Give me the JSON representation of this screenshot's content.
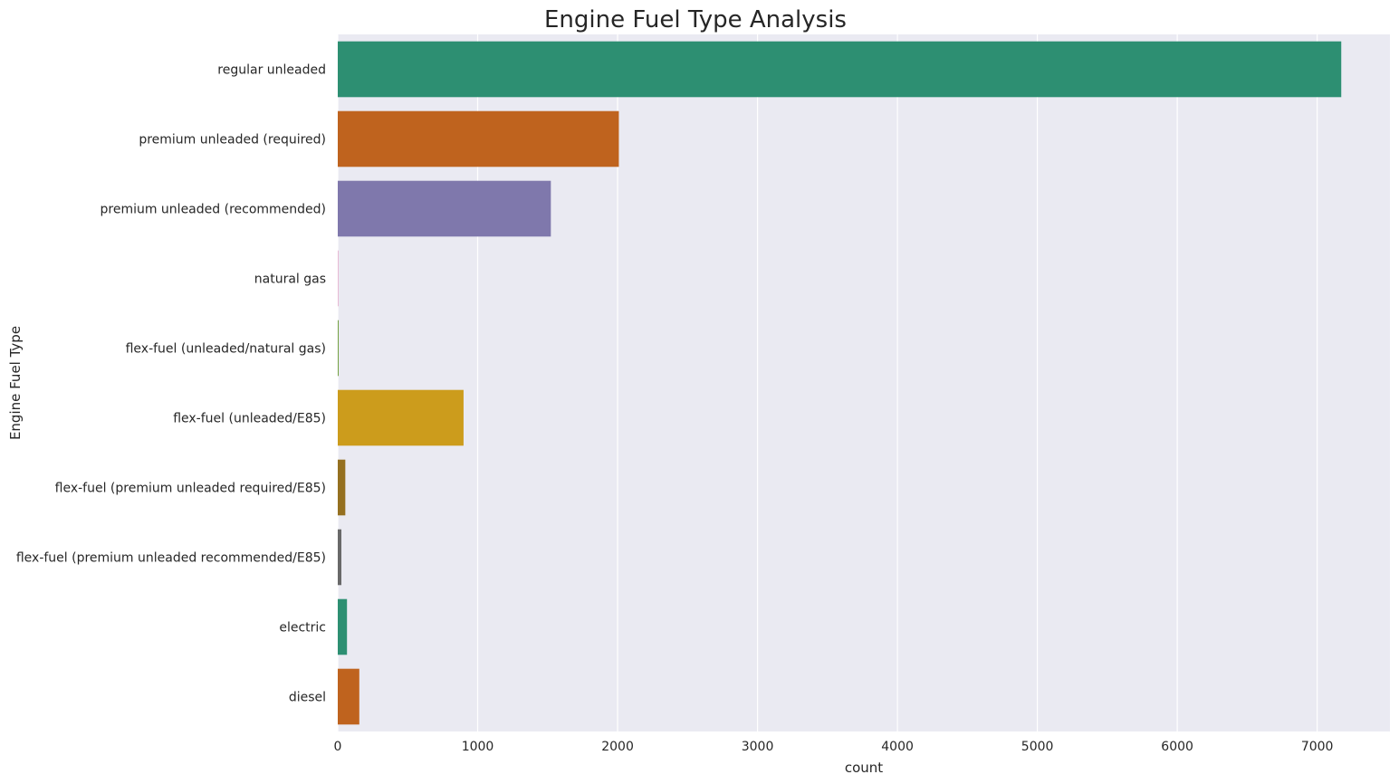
{
  "chart_data": {
    "type": "bar",
    "orientation": "horizontal",
    "title": "Engine Fuel Type Analysis",
    "xlabel": "count",
    "ylabel": "Engine Fuel Type",
    "xlim": [
      0,
      7520
    ],
    "xticks": [
      0,
      1000,
      2000,
      3000,
      4000,
      5000,
      6000,
      7000
    ],
    "grid": true,
    "background": "#eaeaf2",
    "categories": [
      "regular unleaded",
      "premium unleaded (required)",
      "premium unleaded (recommended)",
      "natural gas",
      "flex-fuel (unleaded/natural gas)",
      "flex-fuel (unleaded/E85)",
      "flex-fuel (premium unleaded required/E85)",
      "flex-fuel (premium unleaded recommended/E85)",
      "electric",
      "diesel"
    ],
    "values": [
      7172,
      2009,
      1523,
      2,
      6,
      899,
      54,
      26,
      66,
      154
    ],
    "colors": [
      "#2d8f72",
      "#bf631e",
      "#7f78ac",
      "#cf3a86",
      "#6b9b34",
      "#cc9c1c",
      "#957020",
      "#696969",
      "#2d8f72",
      "#bf631e"
    ]
  }
}
